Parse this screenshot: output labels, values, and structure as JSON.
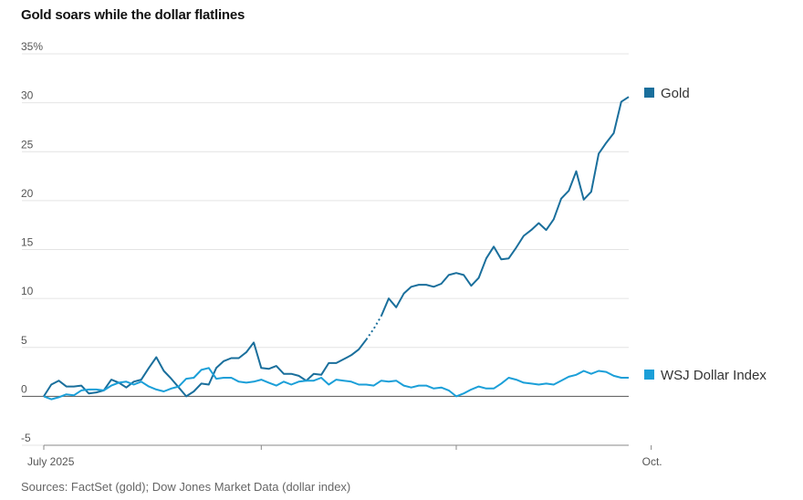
{
  "title": "Gold soars while the dollar flatlines",
  "source": "Sources: FactSet (gold); Dow Jones Market Data (dollar index)",
  "chart_data": {
    "type": "line",
    "title": "Gold soars while the dollar flatlines",
    "xlabel": "",
    "ylabel": "",
    "ylim": [
      -5,
      35
    ],
    "y_ticks": [
      35,
      30,
      25,
      20,
      15,
      10,
      5,
      0,
      -5
    ],
    "y_tick_labels": [
      "35%",
      "30",
      "25",
      "20",
      "15",
      "10",
      "5",
      "0",
      "-5"
    ],
    "x_tick_labels": [
      "July 2025",
      "",
      "",
      "Oct."
    ],
    "x_tick_index": [
      0,
      29,
      55,
      81
    ],
    "grid": true,
    "legend": "right",
    "series": [
      {
        "name": "Gold",
        "color": "#1a6f9c",
        "gap_after_index": 54,
        "values": [
          0.0,
          1.2,
          1.6,
          1.0,
          1.0,
          1.1,
          0.3,
          0.4,
          0.6,
          1.7,
          1.4,
          0.9,
          1.5,
          1.7,
          2.9,
          4.0,
          2.6,
          1.8,
          0.9,
          0.0,
          0.5,
          1.3,
          1.2,
          2.9,
          3.6,
          3.9,
          3.9,
          4.5,
          5.5,
          2.9,
          2.8,
          3.1,
          2.3,
          2.3,
          2.1,
          1.6,
          2.3,
          2.2,
          3.4,
          3.4,
          3.8,
          4.2,
          4.8,
          5.8,
          6.9,
          8.2,
          10.0,
          9.1,
          10.5,
          11.2,
          11.4,
          11.4,
          11.2,
          11.5,
          12.4,
          12.6,
          12.4,
          11.3,
          12.1,
          14.1,
          15.3,
          14.0,
          14.1,
          15.2,
          16.4,
          17.0,
          17.7,
          17.0,
          18.1,
          20.2,
          21.0,
          23.0,
          20.1,
          20.9,
          24.8,
          25.9,
          26.9,
          30.1,
          30.6
        ]
      },
      {
        "name": "WSJ Dollar Index",
        "color": "#1b9fd8",
        "values": [
          0.0,
          -0.3,
          -0.1,
          0.2,
          0.1,
          0.6,
          0.7,
          0.7,
          0.6,
          1.1,
          1.4,
          1.5,
          1.2,
          1.5,
          1.0,
          0.7,
          0.5,
          0.8,
          1.0,
          1.8,
          1.9,
          2.7,
          2.9,
          1.8,
          1.9,
          1.9,
          1.5,
          1.4,
          1.5,
          1.7,
          1.4,
          1.1,
          1.5,
          1.2,
          1.5,
          1.6,
          1.6,
          1.9,
          1.2,
          1.7,
          1.6,
          1.5,
          1.2,
          1.2,
          1.1,
          1.6,
          1.5,
          1.6,
          1.1,
          0.9,
          1.1,
          1.1,
          0.8,
          0.9,
          0.6,
          0.0,
          0.3,
          0.7,
          1.0,
          0.8,
          0.8,
          1.3,
          1.9,
          1.7,
          1.4,
          1.3,
          1.2,
          1.3,
          1.2,
          1.6,
          2.0,
          2.2,
          2.6,
          2.3,
          2.6,
          2.5,
          2.1,
          1.9,
          1.9
        ]
      }
    ]
  }
}
